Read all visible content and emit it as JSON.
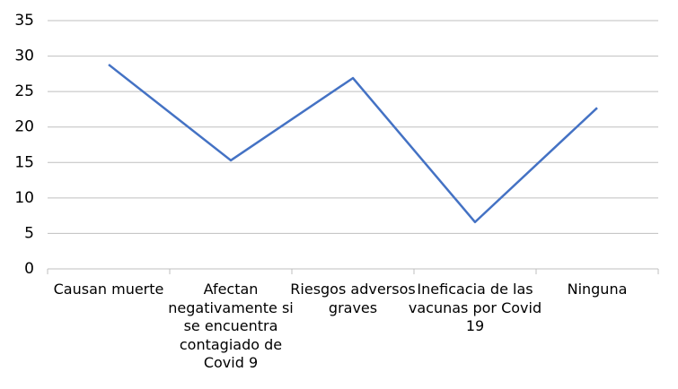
{
  "chart_data": {
    "type": "line",
    "categories": [
      "Causan muerte",
      "Afectan negativamente si se encuentra contagiado de Covid 9",
      "Riesgos adversos graves",
      "Ineficacia de las vacunas por Covid 19",
      "Ninguna"
    ],
    "values": [
      28.8,
      15.3,
      26.9,
      6.6,
      22.7
    ],
    "color": "#4472c4",
    "ylim": [
      0,
      35
    ],
    "yticks": [
      0,
      5,
      10,
      15,
      20,
      25,
      30,
      35
    ],
    "grid": true
  }
}
